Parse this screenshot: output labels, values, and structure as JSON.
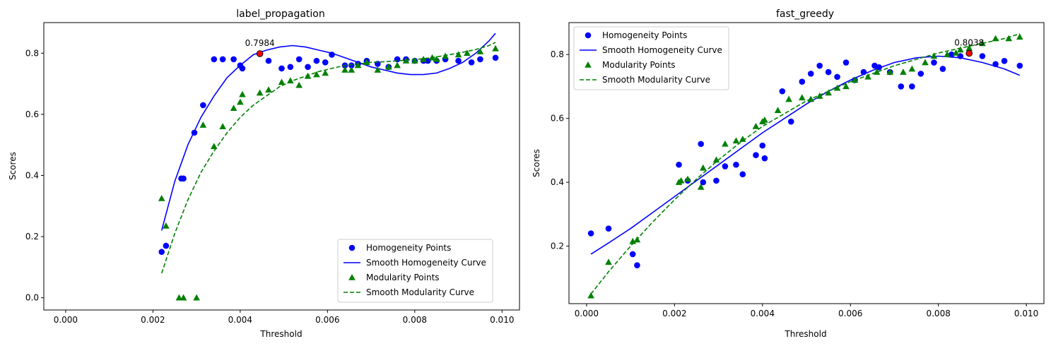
{
  "chart_data": [
    {
      "type": "scatter",
      "title": "label_propagation",
      "xlabel": "Threshold",
      "ylabel": "Scores",
      "xlim": [
        -0.0005,
        0.0104
      ],
      "ylim": [
        -0.04,
        0.9
      ],
      "xticks": [
        0.0,
        0.002,
        0.004,
        0.006,
        0.008,
        0.01
      ],
      "xtick_labels": [
        "0.000",
        "0.002",
        "0.004",
        "0.006",
        "0.008",
        "0.010"
      ],
      "yticks": [
        0.0,
        0.2,
        0.4,
        0.6,
        0.8
      ],
      "ytick_labels": [
        "0.0",
        "0.2",
        "0.4",
        "0.6",
        "0.8"
      ],
      "grid": false,
      "legend_position": "lower-right",
      "colors": {
        "homogeneity": "#0000ff",
        "modularity": "#008000",
        "best": "#ff0000"
      },
      "legend": [
        "Homogeneity Points",
        "Smooth Homogeneity Curve",
        "Modularity Points",
        "Smooth Modularity Curve"
      ],
      "series": [
        {
          "name": "Homogeneity Points",
          "kind": "points",
          "marker": "circle",
          "x": [
            0.0022,
            0.0023,
            0.00265,
            0.0027,
            0.00295,
            0.00315,
            0.0034,
            0.0036,
            0.00385,
            0.004,
            0.00405,
            0.00445,
            0.00465,
            0.00495,
            0.00515,
            0.00535,
            0.00555,
            0.00575,
            0.00595,
            0.0061,
            0.0064,
            0.00655,
            0.0067,
            0.0069,
            0.00715,
            0.0074,
            0.0076,
            0.0078,
            0.008,
            0.0082,
            0.0083,
            0.0085,
            0.0087,
            0.009,
            0.0093,
            0.0095,
            0.00985
          ],
          "y": [
            0.15,
            0.17,
            0.39,
            0.39,
            0.54,
            0.63,
            0.78,
            0.78,
            0.78,
            0.76,
            0.75,
            0.7984,
            0.775,
            0.75,
            0.755,
            0.78,
            0.755,
            0.775,
            0.77,
            0.795,
            0.76,
            0.76,
            0.765,
            0.775,
            0.765,
            0.755,
            0.78,
            0.78,
            0.775,
            0.775,
            0.775,
            0.775,
            0.78,
            0.775,
            0.77,
            0.78,
            0.785
          ]
        },
        {
          "name": "Smooth Homogeneity Curve",
          "kind": "line",
          "style": "solid",
          "x": [
            0.0022,
            0.0025,
            0.0028,
            0.0031,
            0.0034,
            0.0037,
            0.004,
            0.0043,
            0.0046,
            0.0049,
            0.0052,
            0.0055,
            0.0058,
            0.0061,
            0.0064,
            0.0067,
            0.007,
            0.0073,
            0.0076,
            0.0079,
            0.0082,
            0.0085,
            0.0088,
            0.0091,
            0.0094,
            0.0097,
            0.00985
          ],
          "y": [
            0.22,
            0.38,
            0.5,
            0.59,
            0.66,
            0.72,
            0.76,
            0.795,
            0.81,
            0.82,
            0.825,
            0.82,
            0.81,
            0.8,
            0.785,
            0.77,
            0.755,
            0.745,
            0.735,
            0.73,
            0.73,
            0.735,
            0.75,
            0.77,
            0.8,
            0.84,
            0.865
          ]
        },
        {
          "name": "Modularity Points",
          "kind": "points",
          "marker": "triangle",
          "x": [
            0.0022,
            0.0023,
            0.0026,
            0.0027,
            0.003,
            0.00315,
            0.0034,
            0.0036,
            0.00385,
            0.004,
            0.00405,
            0.00445,
            0.00465,
            0.00495,
            0.00515,
            0.00535,
            0.00555,
            0.00575,
            0.00595,
            0.0064,
            0.00655,
            0.0067,
            0.0069,
            0.00715,
            0.0074,
            0.0076,
            0.0078,
            0.008,
            0.0082,
            0.0084,
            0.0085,
            0.0087,
            0.009,
            0.0092,
            0.0095,
            0.00985
          ],
          "y": [
            0.325,
            0.235,
            0.0,
            0.0,
            0.0,
            0.565,
            0.495,
            0.56,
            0.62,
            0.64,
            0.665,
            0.67,
            0.68,
            0.705,
            0.71,
            0.695,
            0.725,
            0.73,
            0.735,
            0.745,
            0.745,
            0.76,
            0.77,
            0.745,
            0.755,
            0.76,
            0.775,
            0.775,
            0.78,
            0.785,
            0.78,
            0.79,
            0.795,
            0.8,
            0.805,
            0.815
          ]
        },
        {
          "name": "Smooth Modularity Curve",
          "kind": "line",
          "style": "dashed",
          "x": [
            0.0022,
            0.0025,
            0.0028,
            0.0031,
            0.0034,
            0.0037,
            0.004,
            0.0043,
            0.0046,
            0.0049,
            0.0052,
            0.0055,
            0.0058,
            0.0061,
            0.0064,
            0.0067,
            0.007,
            0.0073,
            0.0076,
            0.0079,
            0.0082,
            0.0085,
            0.0088,
            0.0091,
            0.0094,
            0.0097,
            0.00985
          ],
          "y": [
            0.08,
            0.21,
            0.32,
            0.41,
            0.48,
            0.54,
            0.59,
            0.63,
            0.66,
            0.69,
            0.71,
            0.725,
            0.74,
            0.75,
            0.76,
            0.765,
            0.77,
            0.772,
            0.775,
            0.778,
            0.782,
            0.788,
            0.795,
            0.803,
            0.812,
            0.825,
            0.835
          ]
        }
      ],
      "best_point": {
        "x": 0.00445,
        "y": 0.7984,
        "label": "0.7984"
      }
    },
    {
      "type": "scatter",
      "title": "fast_greedy",
      "xlabel": "Threshold",
      "ylabel": "Scores",
      "xlim": [
        -0.0004,
        0.0104
      ],
      "ylim": [
        0.02,
        0.9
      ],
      "xticks": [
        0.0,
        0.002,
        0.004,
        0.006,
        0.008,
        0.01
      ],
      "xtick_labels": [
        "0.000",
        "0.002",
        "0.004",
        "0.006",
        "0.008",
        "0.010"
      ],
      "yticks": [
        0.2,
        0.4,
        0.6,
        0.8
      ],
      "ytick_labels": [
        "0.2",
        "0.4",
        "0.6",
        "0.8"
      ],
      "grid": false,
      "legend_position": "upper-left",
      "colors": {
        "homogeneity": "#0000ff",
        "modularity": "#008000",
        "best": "#ff0000"
      },
      "legend": [
        "Homogeneity Points",
        "Smooth Homogeneity Curve",
        "Modularity Points",
        "Smooth Modularity Curve"
      ],
      "series": [
        {
          "name": "Homogeneity Points",
          "kind": "points",
          "marker": "circle",
          "x": [
            0.0001,
            0.0005,
            0.00105,
            0.00115,
            0.0021,
            0.0023,
            0.0026,
            0.00265,
            0.00295,
            0.00315,
            0.0034,
            0.00355,
            0.00385,
            0.004,
            0.00405,
            0.00445,
            0.00465,
            0.0049,
            0.0051,
            0.0053,
            0.0055,
            0.0057,
            0.0059,
            0.0061,
            0.0063,
            0.00655,
            0.00665,
            0.0069,
            0.00715,
            0.0074,
            0.0076,
            0.0079,
            0.0081,
            0.0083,
            0.0085,
            0.0087,
            0.009,
            0.0093,
            0.0095,
            0.00985
          ],
          "y": [
            0.24,
            0.255,
            0.175,
            0.14,
            0.455,
            0.405,
            0.52,
            0.4,
            0.405,
            0.45,
            0.455,
            0.425,
            0.485,
            0.515,
            0.475,
            0.685,
            0.59,
            0.715,
            0.74,
            0.765,
            0.745,
            0.73,
            0.775,
            0.72,
            0.745,
            0.765,
            0.76,
            0.745,
            0.7,
            0.7,
            0.74,
            0.775,
            0.755,
            0.8,
            0.795,
            0.8038,
            0.795,
            0.77,
            0.78,
            0.765
          ]
        },
        {
          "name": "Smooth Homogeneity Curve",
          "kind": "line",
          "style": "solid",
          "x": [
            0.0001,
            0.0005,
            0.001,
            0.0015,
            0.002,
            0.0025,
            0.003,
            0.0035,
            0.004,
            0.0045,
            0.005,
            0.0055,
            0.006,
            0.0065,
            0.007,
            0.0075,
            0.008,
            0.0085,
            0.009,
            0.0095,
            0.00985
          ],
          "y": [
            0.175,
            0.21,
            0.255,
            0.305,
            0.355,
            0.405,
            0.455,
            0.505,
            0.555,
            0.6,
            0.645,
            0.685,
            0.72,
            0.75,
            0.775,
            0.79,
            0.795,
            0.79,
            0.775,
            0.755,
            0.735
          ]
        },
        {
          "name": "Modularity Points",
          "kind": "points",
          "marker": "triangle",
          "x": [
            0.0001,
            0.0005,
            0.00105,
            0.00115,
            0.0021,
            0.00215,
            0.0023,
            0.0026,
            0.00265,
            0.00295,
            0.00315,
            0.0034,
            0.00355,
            0.00385,
            0.004,
            0.00405,
            0.00435,
            0.0046,
            0.0049,
            0.0051,
            0.0053,
            0.0055,
            0.0057,
            0.0059,
            0.0061,
            0.0064,
            0.0066,
            0.0069,
            0.0072,
            0.0074,
            0.0077,
            0.0079,
            0.0082,
            0.0084,
            0.0085,
            0.0087,
            0.009,
            0.0093,
            0.0096,
            0.00985
          ],
          "y": [
            0.045,
            0.15,
            0.215,
            0.22,
            0.4,
            0.405,
            0.41,
            0.385,
            0.445,
            0.47,
            0.52,
            0.53,
            0.535,
            0.575,
            0.59,
            0.595,
            0.625,
            0.66,
            0.665,
            0.66,
            0.67,
            0.68,
            0.695,
            0.7,
            0.72,
            0.73,
            0.745,
            0.745,
            0.745,
            0.755,
            0.775,
            0.795,
            0.8,
            0.805,
            0.815,
            0.82,
            0.835,
            0.85,
            0.85,
            0.855
          ]
        },
        {
          "name": "Smooth Modularity Curve",
          "kind": "line",
          "style": "dashed",
          "x": [
            0.0001,
            0.0005,
            0.001,
            0.0015,
            0.002,
            0.0025,
            0.003,
            0.0035,
            0.004,
            0.0045,
            0.005,
            0.0055,
            0.006,
            0.0065,
            0.007,
            0.0075,
            0.008,
            0.0085,
            0.009,
            0.0095,
            0.00985
          ],
          "y": [
            0.05,
            0.12,
            0.2,
            0.275,
            0.345,
            0.41,
            0.47,
            0.525,
            0.575,
            0.615,
            0.655,
            0.685,
            0.715,
            0.74,
            0.765,
            0.785,
            0.805,
            0.82,
            0.835,
            0.85,
            0.865
          ]
        }
      ],
      "best_point": {
        "x": 0.0087,
        "y": 0.8038,
        "label": "0.8038"
      }
    }
  ]
}
